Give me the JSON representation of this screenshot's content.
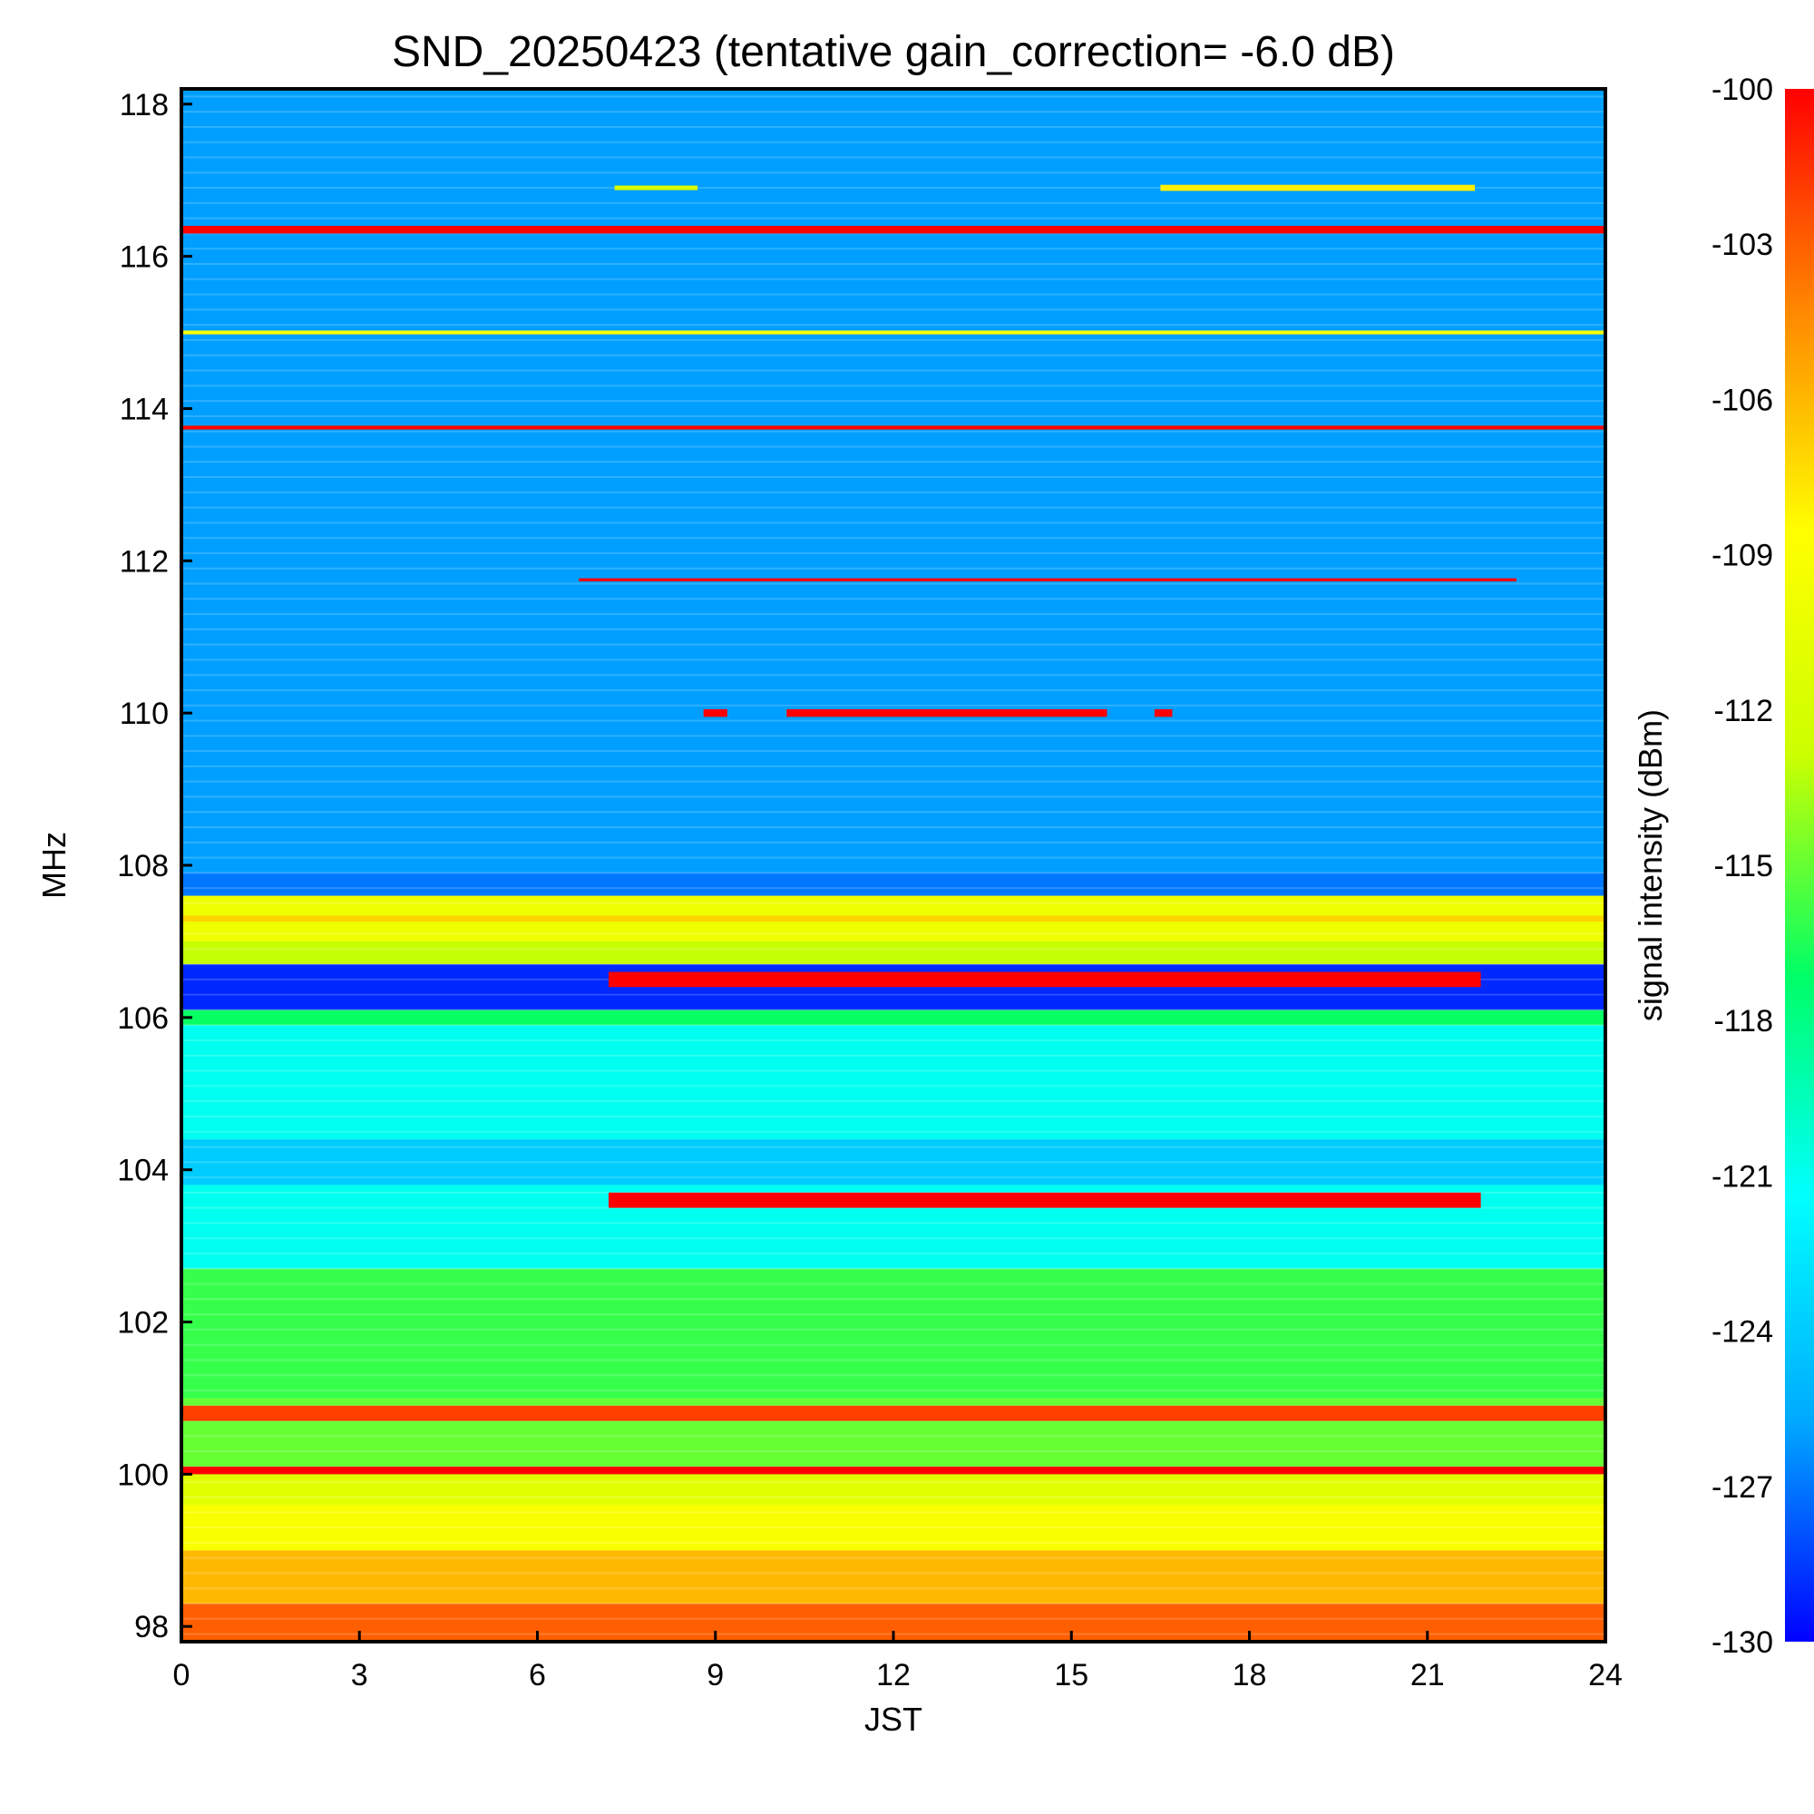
{
  "chart_data": {
    "type": "heatmap",
    "title": "SND_20250423 (tentative gain_correction= -6.0 dB)",
    "xlabel": "JST",
    "ylabel": "MHz",
    "colorbar_label": "signal intensity (dBm)",
    "xlim": [
      0,
      24
    ],
    "ylim": [
      97.8,
      118.2
    ],
    "x_ticks": [
      0,
      3,
      6,
      9,
      12,
      15,
      18,
      21,
      24
    ],
    "y_ticks": [
      98,
      100,
      102,
      104,
      106,
      108,
      110,
      112,
      114,
      116,
      118
    ],
    "colorbar_range": [
      -130,
      -100
    ],
    "colorbar_ticks": [
      -100,
      -103,
      -106,
      -109,
      -112,
      -115,
      -118,
      -121,
      -124,
      -127,
      -130
    ],
    "colormap": [
      "#0000ff",
      "#00aaff",
      "#00ffff",
      "#00ff66",
      "#ccff00",
      "#ffff00",
      "#ff8800",
      "#ff0000"
    ],
    "background_bands": [
      {
        "f0": 97.8,
        "f1": 98.3,
        "dbm": -103
      },
      {
        "f0": 98.3,
        "f1": 99.0,
        "dbm": -106
      },
      {
        "f0": 99.0,
        "f1": 99.6,
        "dbm": -109
      },
      {
        "f0": 99.6,
        "f1": 100.0,
        "dbm": -111
      },
      {
        "f0": 100.0,
        "f1": 101.0,
        "dbm": -115
      },
      {
        "f0": 101.0,
        "f1": 102.7,
        "dbm": -116
      },
      {
        "f0": 102.7,
        "f1": 103.8,
        "dbm": -121
      },
      {
        "f0": 103.8,
        "f1": 104.4,
        "dbm": -124
      },
      {
        "f0": 104.4,
        "f1": 105.9,
        "dbm": -121
      },
      {
        "f0": 105.9,
        "f1": 106.1,
        "dbm": -117
      },
      {
        "f0": 106.1,
        "f1": 106.7,
        "dbm": -129
      },
      {
        "f0": 106.7,
        "f1": 107.0,
        "dbm": -113
      },
      {
        "f0": 107.0,
        "f1": 107.6,
        "dbm": -110
      },
      {
        "f0": 107.6,
        "f1": 107.9,
        "dbm": -127
      },
      {
        "f0": 107.9,
        "f1": 118.2,
        "dbm": -126
      }
    ],
    "signals": [
      {
        "freq": 116.35,
        "t0": 0,
        "t1": 24,
        "dbm": -100,
        "width": 0.1
      },
      {
        "freq": 115.0,
        "t0": 0,
        "t1": 24,
        "dbm": -109,
        "width": 0.05
      },
      {
        "freq": 113.75,
        "t0": 0,
        "t1": 24,
        "dbm": -100,
        "width": 0.05
      },
      {
        "freq": 111.75,
        "t0": 6.7,
        "t1": 22.5,
        "dbm": -100,
        "width": 0.04
      },
      {
        "freq": 110.0,
        "t0": 10.2,
        "t1": 15.6,
        "dbm": -100,
        "width": 0.1
      },
      {
        "freq": 110.0,
        "t0": 8.8,
        "t1": 9.2,
        "dbm": -100,
        "width": 0.1
      },
      {
        "freq": 110.0,
        "t0": 16.4,
        "t1": 16.7,
        "dbm": -100,
        "width": 0.1
      },
      {
        "freq": 106.5,
        "t0": 7.2,
        "t1": 21.9,
        "dbm": -100,
        "width": 0.2
      },
      {
        "freq": 103.6,
        "t0": 7.2,
        "t1": 21.9,
        "dbm": -100,
        "width": 0.2
      },
      {
        "freq": 100.8,
        "t0": 0,
        "t1": 24,
        "dbm": -102,
        "width": 0.2
      },
      {
        "freq": 100.05,
        "t0": 0,
        "t1": 24,
        "dbm": -100,
        "width": 0.1
      },
      {
        "freq": 107.3,
        "t0": 0,
        "t1": 24,
        "dbm": -107,
        "width": 0.08
      },
      {
        "freq": 116.9,
        "t0": 16.5,
        "t1": 21.8,
        "dbm": -108,
        "width": 0.08
      },
      {
        "freq": 116.9,
        "t0": 7.3,
        "t1": 8.7,
        "dbm": -112,
        "width": 0.06
      }
    ]
  }
}
